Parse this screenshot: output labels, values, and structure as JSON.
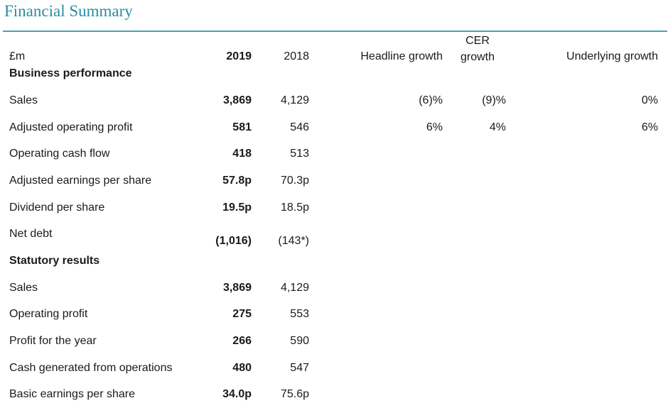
{
  "title": "Financial Summary",
  "header": {
    "unit": "£m",
    "col_2019": "2019",
    "col_2018": "2018",
    "col_headline": "Headline growth",
    "col_cer_1": "CER",
    "col_cer_2": "growth",
    "col_underlying": "Underlying growth"
  },
  "sections": {
    "business": "Business performance",
    "statutory": "Statutory results"
  },
  "rows": [
    {
      "label": "Sales",
      "y2019": "3,869",
      "y2018": "4,129",
      "headline": "(6)%",
      "cer": "(9)%",
      "underlying": "0%"
    },
    {
      "label": "Adjusted operating profit",
      "y2019": "581",
      "y2018": "546",
      "headline": "6%",
      "cer": "4%",
      "underlying": "6%"
    },
    {
      "label": "Operating cash flow",
      "y2019": "418",
      "y2018": "513"
    },
    {
      "label": "Adjusted earnings per share",
      "y2019": "57.8p",
      "y2018": "70.3p"
    },
    {
      "label": "Dividend per share",
      "y2019": "19.5p",
      "y2018": "18.5p"
    },
    {
      "label": "Net debt",
      "y2019": "(1,016)",
      "y2018": "(143*)"
    },
    {
      "label": "Sales",
      "y2019": "3,869",
      "y2018": "4,129"
    },
    {
      "label": "Operating profit",
      "y2019": "275",
      "y2018": "553"
    },
    {
      "label": "Profit for the year",
      "y2019": "266",
      "y2018": "590"
    },
    {
      "label": "Cash generated from operations",
      "y2019": "480",
      "y2018": "547"
    },
    {
      "label": "Basic earnings per share",
      "y2019": "34.0p",
      "y2018": "75.6p"
    }
  ]
}
